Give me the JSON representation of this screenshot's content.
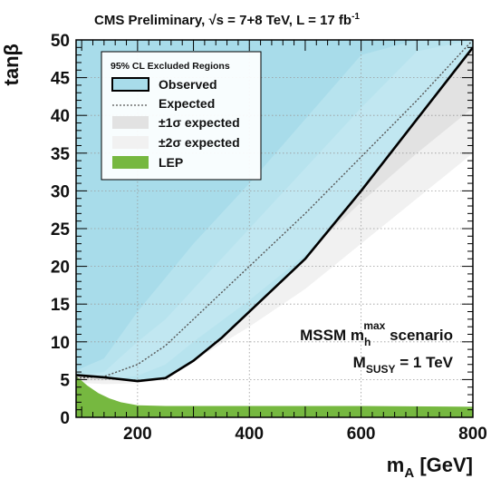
{
  "chart_data": {
    "type": "area",
    "title": {
      "prefix": "CMS Preliminary, ",
      "sqrt_symbol": "√s",
      "middle": " = 7+8 TeV, L = 17 fb",
      "sup": "-1"
    },
    "xlabel": {
      "main": "m",
      "sub": "A",
      "rest": " [GeV]"
    },
    "ylabel": "tanβ",
    "xlim": [
      90,
      800
    ],
    "ylim": [
      0,
      50
    ],
    "x_ticks": [
      200,
      400,
      600,
      800
    ],
    "y_ticks": [
      0,
      5,
      10,
      15,
      20,
      25,
      30,
      35,
      40,
      45,
      50
    ],
    "grid": true,
    "legend": {
      "placement": "top-left",
      "title": "95% CL Excluded Regions",
      "entries": [
        "Observed",
        "Expected",
        "±1σ expected",
        "±2σ expected",
        "LEP"
      ]
    },
    "annotation": {
      "line1_main": "MSSM m",
      "line1_sub": "h",
      "line1_sup": "max",
      "line1_rest": " scenario",
      "line2_main": "M",
      "line2_sub": "SUSY",
      "line2_rest": " = 1 TeV"
    },
    "colors": {
      "observed_fill": "#a8dcea",
      "observed_line": "#000000",
      "expected_line": "#555555",
      "sigma1_band": "#e2e2e2",
      "sigma2_band": "#f1f1f1",
      "lep_fill": "#76b840",
      "band_overlap": "#c4e9f2"
    },
    "series": [
      {
        "name": "Observed",
        "x": [
          90,
          140,
          200,
          250,
          300,
          350,
          400,
          500,
          600,
          700,
          800
        ],
        "y": [
          5.6,
          5.3,
          4.8,
          5.2,
          7.5,
          10.5,
          14,
          21,
          30,
          39.5,
          49
        ]
      },
      {
        "name": "Expected",
        "x": [
          90,
          140,
          200,
          250,
          300,
          400,
          500,
          600,
          700,
          800
        ],
        "y": [
          5.2,
          5.4,
          7,
          9.5,
          13,
          20,
          27,
          34.5,
          42,
          50
        ]
      },
      {
        "name": "±1σ expected",
        "x": [
          90,
          140,
          200,
          250,
          300,
          400,
          500,
          600,
          700,
          800
        ],
        "y_low": [
          4.9,
          4.9,
          5.5,
          7,
          10,
          15.5,
          21.5,
          28.5,
          35,
          41
        ],
        "y_high": [
          5.6,
          6,
          10,
          13,
          17,
          25,
          33,
          41,
          48.5,
          50
        ]
      },
      {
        "name": "±2σ expected",
        "x": [
          90,
          140,
          200,
          250,
          300,
          400,
          500,
          600,
          700,
          800
        ],
        "y_low": [
          4.6,
          4.4,
          4.5,
          5,
          7.5,
          12,
          17,
          23,
          29,
          35
        ],
        "y_high": [
          6.2,
          7.8,
          14,
          18.5,
          23,
          31,
          39.5,
          48,
          50,
          50
        ]
      },
      {
        "name": "LEP",
        "x": [
          90,
          110,
          130,
          150,
          170,
          200,
          250,
          300,
          400,
          600,
          800
        ],
        "y": [
          5.5,
          4.2,
          3.2,
          2.5,
          2.0,
          1.6,
          1.5,
          1.5,
          1.5,
          1.5,
          1.4
        ]
      }
    ]
  }
}
